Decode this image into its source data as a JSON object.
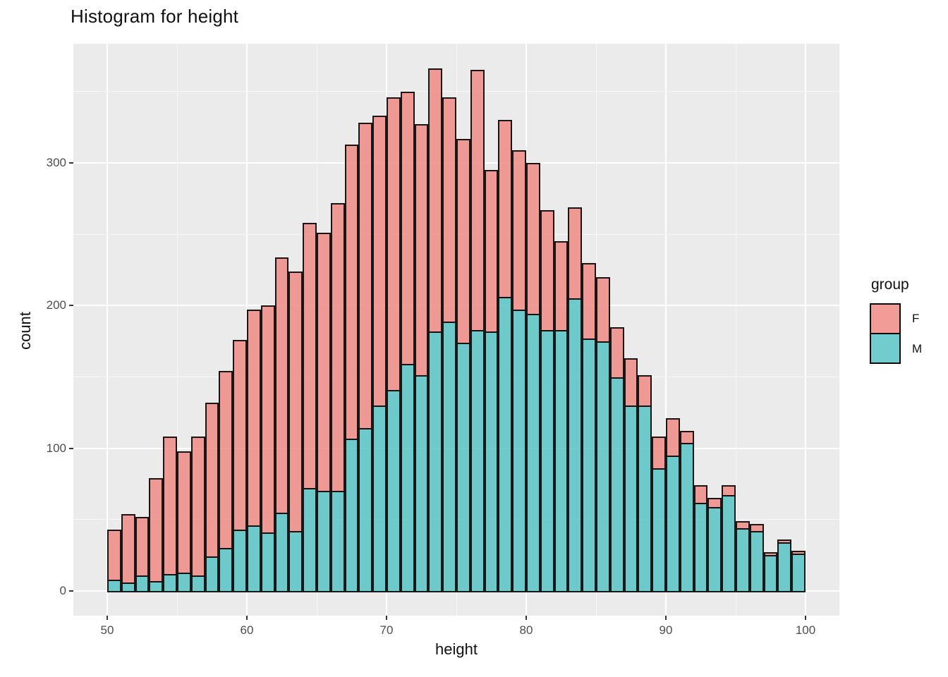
{
  "figure": {
    "title": "Histogram for height"
  },
  "chart_data": {
    "type": "bar",
    "subtype": "stacked_histogram",
    "stacked": true,
    "title": "Histogram for height",
    "xlabel": "height",
    "ylabel": "count",
    "binwidth": 1,
    "bin_starts": [
      50,
      51,
      52,
      53,
      54,
      55,
      56,
      57,
      58,
      59,
      60,
      61,
      62,
      63,
      64,
      65,
      66,
      67,
      68,
      69,
      70,
      71,
      72,
      73,
      74,
      75,
      76,
      77,
      78,
      79,
      80,
      81,
      82,
      83,
      84,
      85,
      86,
      87,
      88,
      89,
      90,
      91,
      92,
      93,
      94,
      95,
      96,
      97,
      98,
      99
    ],
    "series": [
      {
        "name": "F",
        "fill": "rgba(239,134,129,0.82)",
        "values": [
          35,
          48,
          41,
          72,
          96,
          85,
          97,
          108,
          124,
          133,
          151,
          159,
          179,
          182,
          186,
          181,
          202,
          206,
          214,
          203,
          205,
          191,
          176,
          184,
          157,
          143,
          182,
          113,
          124,
          112,
          106,
          84,
          62,
          64,
          53,
          45,
          35,
          33,
          21,
          22,
          26,
          8,
          12,
          6,
          7,
          5,
          5,
          2,
          2,
          2
        ]
      },
      {
        "name": "M",
        "fill": "rgba(82,194,194,0.82)",
        "values": [
          8,
          6,
          11,
          7,
          12,
          13,
          11,
          24,
          30,
          43,
          46,
          41,
          55,
          42,
          72,
          70,
          70,
          107,
          114,
          130,
          141,
          159,
          151,
          182,
          189,
          174,
          183,
          182,
          206,
          197,
          194,
          183,
          183,
          205,
          177,
          175,
          150,
          130,
          130,
          86,
          95,
          104,
          62,
          59,
          67,
          44,
          42,
          25,
          34,
          26
        ]
      }
    ],
    "stack_bottom_to_top": [
      "M",
      "F"
    ],
    "axes": {
      "x_ticks": [
        50,
        60,
        70,
        80,
        90,
        100
      ],
      "x_minor_ticks": [
        55,
        65,
        75,
        85,
        95
      ],
      "y_ticks": [
        0,
        100,
        200,
        300
      ],
      "y_minor_ticks": [
        50,
        150,
        250,
        350
      ],
      "xlim": [
        47.6,
        102.4
      ],
      "ylim": [
        -17,
        383
      ],
      "grid": true
    },
    "legend": {
      "title": "group",
      "position": "right",
      "entries": [
        {
          "label": "F",
          "fill": "rgba(239,134,129,0.82)"
        },
        {
          "label": "M",
          "fill": "rgba(82,194,194,0.82)"
        }
      ]
    }
  },
  "style": {
    "panel_bg": "#EBEBEB",
    "grid_major": "#FFFFFF",
    "grid_minor": "rgba(255,255,255,0.6)",
    "bar_outline": "rgba(10,10,10,0.92)",
    "tick_color": "#333333",
    "tick_label_color": "#4D4D4D",
    "title_color": "#111111",
    "outer_bg": "#FFFFFF"
  }
}
